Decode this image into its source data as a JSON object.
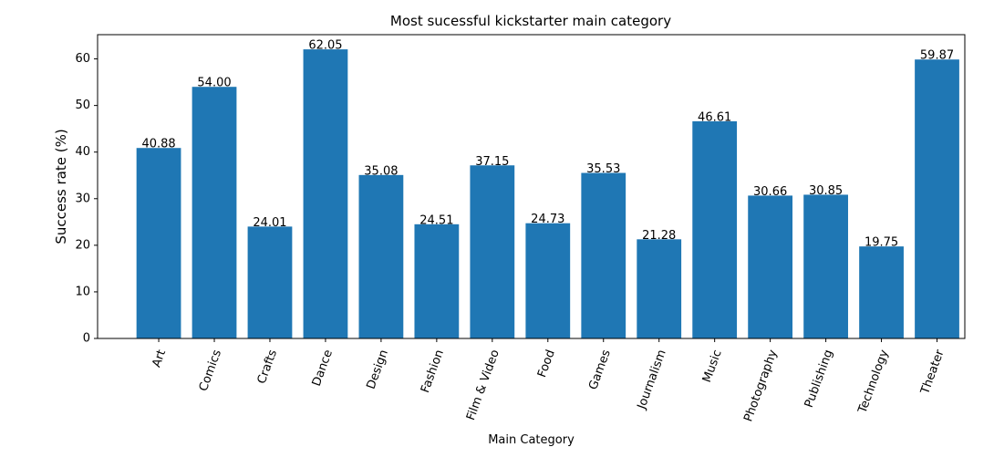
{
  "chart_data": {
    "type": "bar",
    "title": "Most sucessful kickstarter main category",
    "xlabel": "Main Category",
    "ylabel": "Success rate (%)",
    "categories": [
      "Art",
      "Comics",
      "Crafts",
      "Dance",
      "Design",
      "Fashion",
      "Film & Video",
      "Food",
      "Games",
      "Journalism",
      "Music",
      "Photography",
      "Publishing",
      "Technology",
      "Theater"
    ],
    "values": [
      40.88,
      54.0,
      24.01,
      62.05,
      35.08,
      24.51,
      37.15,
      24.73,
      35.53,
      21.28,
      46.61,
      30.66,
      30.85,
      19.75,
      59.87
    ],
    "value_labels": [
      "40.88",
      "54.00",
      "24.01",
      "62.05",
      "35.08",
      "24.51",
      "37.15",
      "24.73",
      "35.53",
      "21.28",
      "46.61",
      "30.66",
      "30.85",
      "19.75",
      "59.87"
    ],
    "ylim": [
      0,
      65.2
    ],
    "yticks": [
      0,
      10,
      20,
      30,
      40,
      50,
      60
    ],
    "ytick_labels": [
      "0",
      "10",
      "20",
      "30",
      "40",
      "50",
      "60"
    ],
    "grid": false,
    "legend": "none",
    "bar_color": "#1f77b4"
  }
}
